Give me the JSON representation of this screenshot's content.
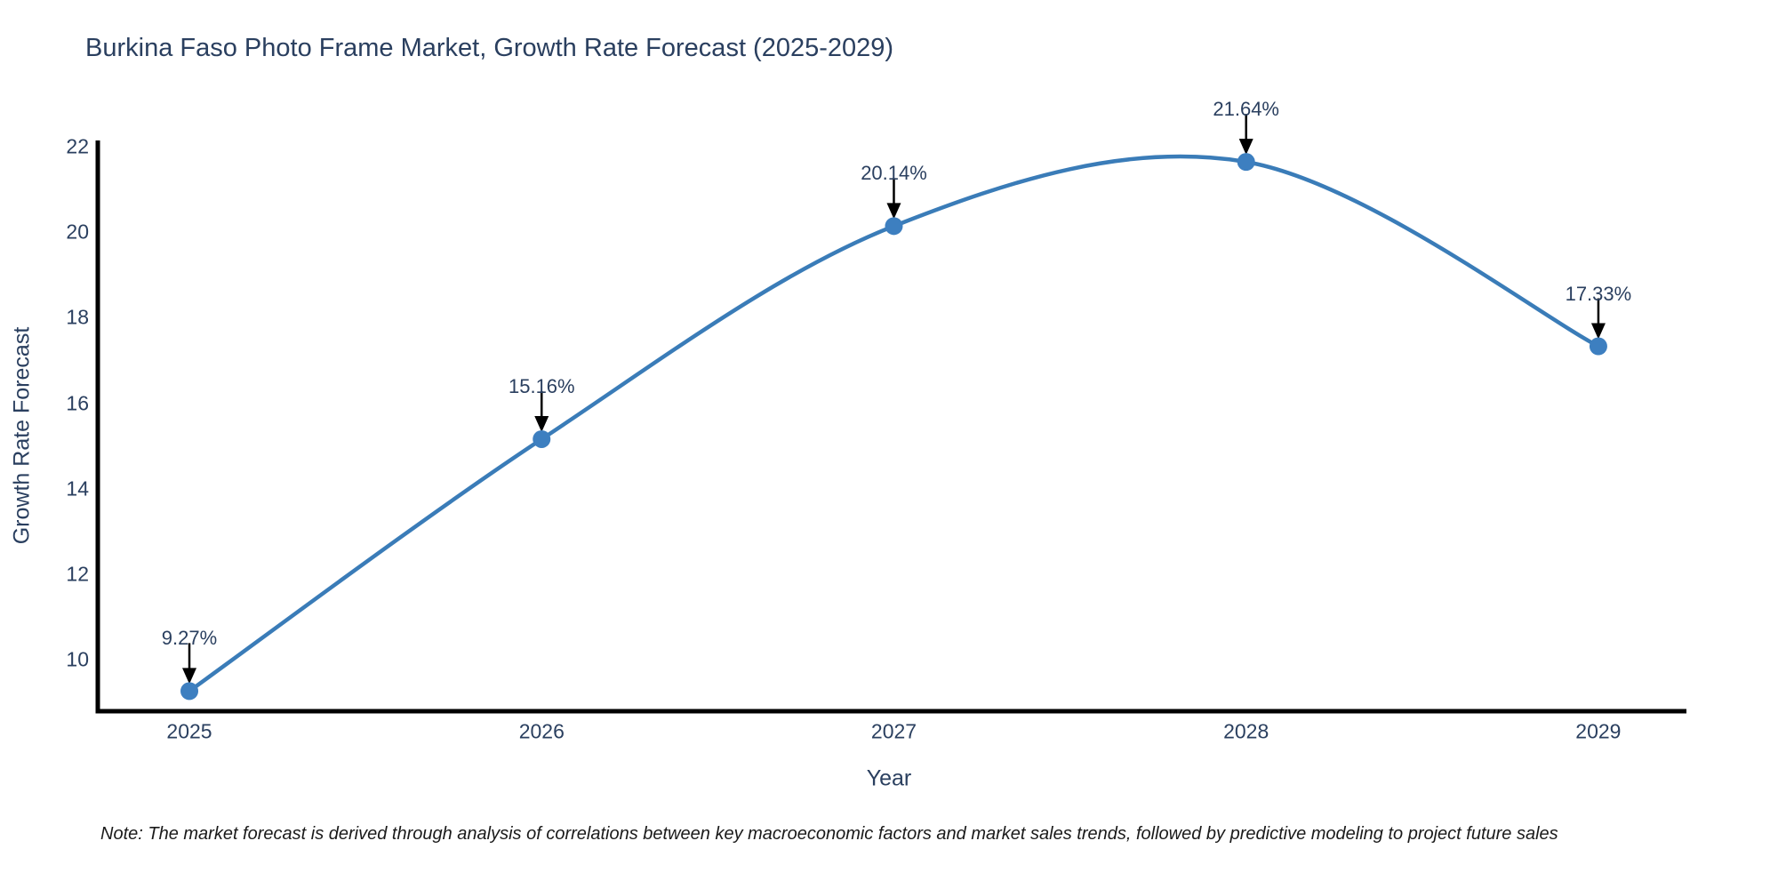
{
  "title": "Burkina Faso Photo Frame Market, Growth Rate Forecast (2025-2029)",
  "footnote": "Note: The market forecast is derived through analysis of correlations between key macroeconomic factors and market sales trends, followed by predictive modeling to project future sales",
  "chart_data": {
    "type": "line",
    "title": "Burkina Faso Photo Frame Market, Growth Rate Forecast (2025-2029)",
    "xlabel": "Year",
    "ylabel": "Growth Rate Forecast",
    "categories": [
      "2025",
      "2026",
      "2027",
      "2028",
      "2029"
    ],
    "x": [
      2025,
      2026,
      2027,
      2028,
      2029
    ],
    "series": [
      {
        "name": "Growth Rate Forecast",
        "values": [
          9.27,
          15.16,
          20.14,
          21.64,
          17.33
        ],
        "point_labels": [
          "9.27%",
          "15.16%",
          "20.14%",
          "21.64%",
          "17.33%"
        ]
      }
    ],
    "yticks": [
      10,
      12,
      14,
      16,
      18,
      20,
      22
    ],
    "ylim": [
      8.8,
      22.1
    ],
    "xlim": [
      2024.74,
      2029.25
    ],
    "line_shape": "spline",
    "grid": false,
    "legend_position": "none",
    "line_color": "#3a7cb8",
    "marker_color": "#3d7fc0",
    "axis_color": "#000000",
    "annotation_arrow_color": "#000000",
    "text_color": "#2a3f5f"
  }
}
